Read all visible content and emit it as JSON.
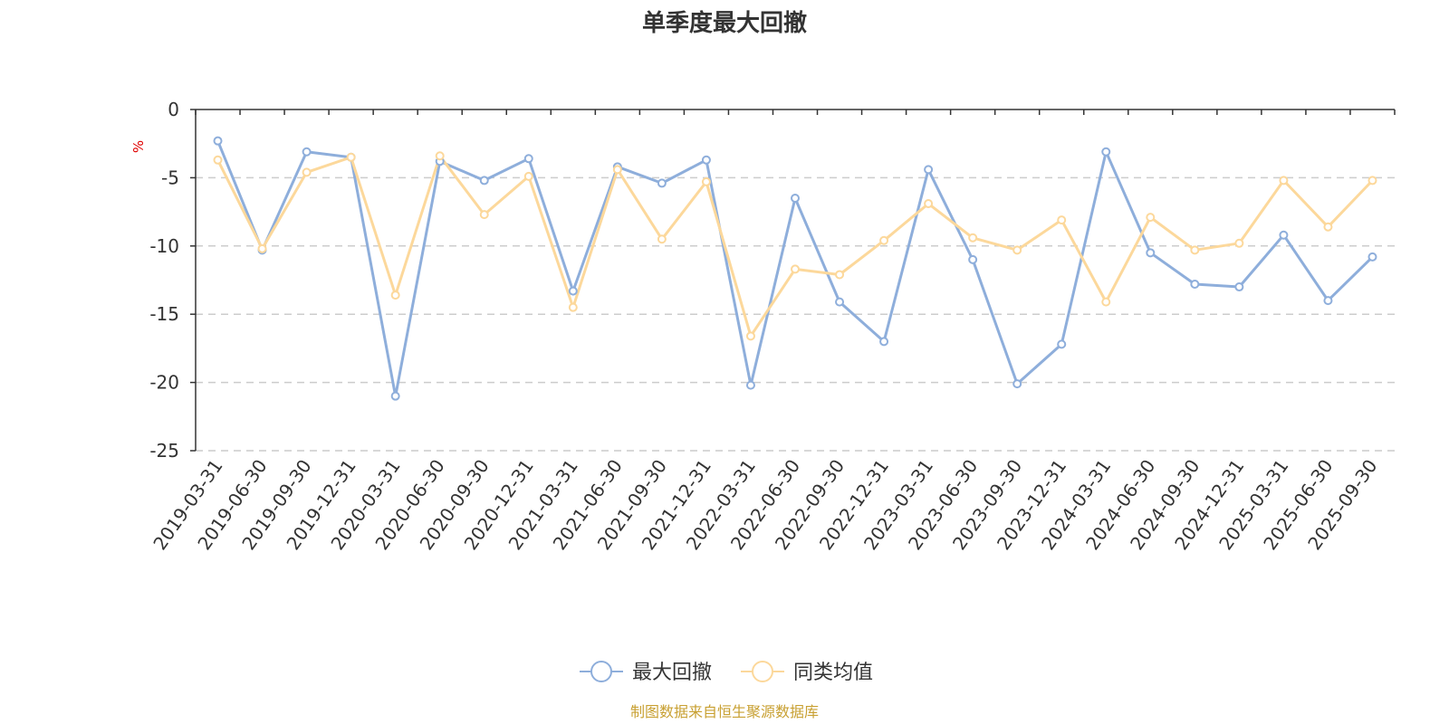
{
  "chart_data": {
    "type": "line",
    "title": "单季度最大回撤",
    "ylabel": "%",
    "xlabel": "",
    "ylim": [
      -25,
      0
    ],
    "yticks": [
      0,
      -5,
      -10,
      -15,
      -20,
      -25
    ],
    "grid": true,
    "legend_position": "bottom-center",
    "categories": [
      "2019-03-31",
      "2019-06-30",
      "2019-09-30",
      "2019-12-31",
      "2020-03-31",
      "2020-06-30",
      "2020-09-30",
      "2020-12-31",
      "2021-03-31",
      "2021-06-30",
      "2021-09-30",
      "2021-12-31",
      "2022-03-31",
      "2022-06-30",
      "2022-09-30",
      "2022-12-31",
      "2023-03-31",
      "2023-06-30",
      "2023-09-30",
      "2023-12-31",
      "2024-03-31",
      "2024-06-30",
      "2024-09-30",
      "2024-12-31",
      "2025-03-31",
      "2025-06-30",
      "2025-09-30"
    ],
    "series": [
      {
        "name": "最大回撤",
        "color": "#8eaedb",
        "values": [
          -2.3,
          -10.3,
          -3.1,
          -3.5,
          -21.0,
          -3.8,
          -5.2,
          -3.6,
          -13.3,
          -4.2,
          -5.4,
          -3.7,
          -20.2,
          -6.5,
          -14.1,
          -17.0,
          -4.4,
          -11.0,
          -20.1,
          -17.2,
          -3.1,
          -10.5,
          -12.8,
          -13.0,
          -9.2,
          -14.0,
          -10.8
        ]
      },
      {
        "name": "同类均值",
        "color": "#fcd89b",
        "values": [
          -3.7,
          -10.2,
          -4.6,
          -3.5,
          -13.6,
          -3.4,
          -7.7,
          -4.9,
          -14.5,
          -4.4,
          -9.5,
          -5.3,
          -16.6,
          -11.7,
          -12.1,
          -9.6,
          -6.9,
          -9.4,
          -10.3,
          -8.1,
          -14.1,
          -7.9,
          -10.3,
          -9.8,
          -5.2,
          -8.6,
          -5.2
        ]
      }
    ],
    "source": "制图数据来自恒生聚源数据库"
  }
}
